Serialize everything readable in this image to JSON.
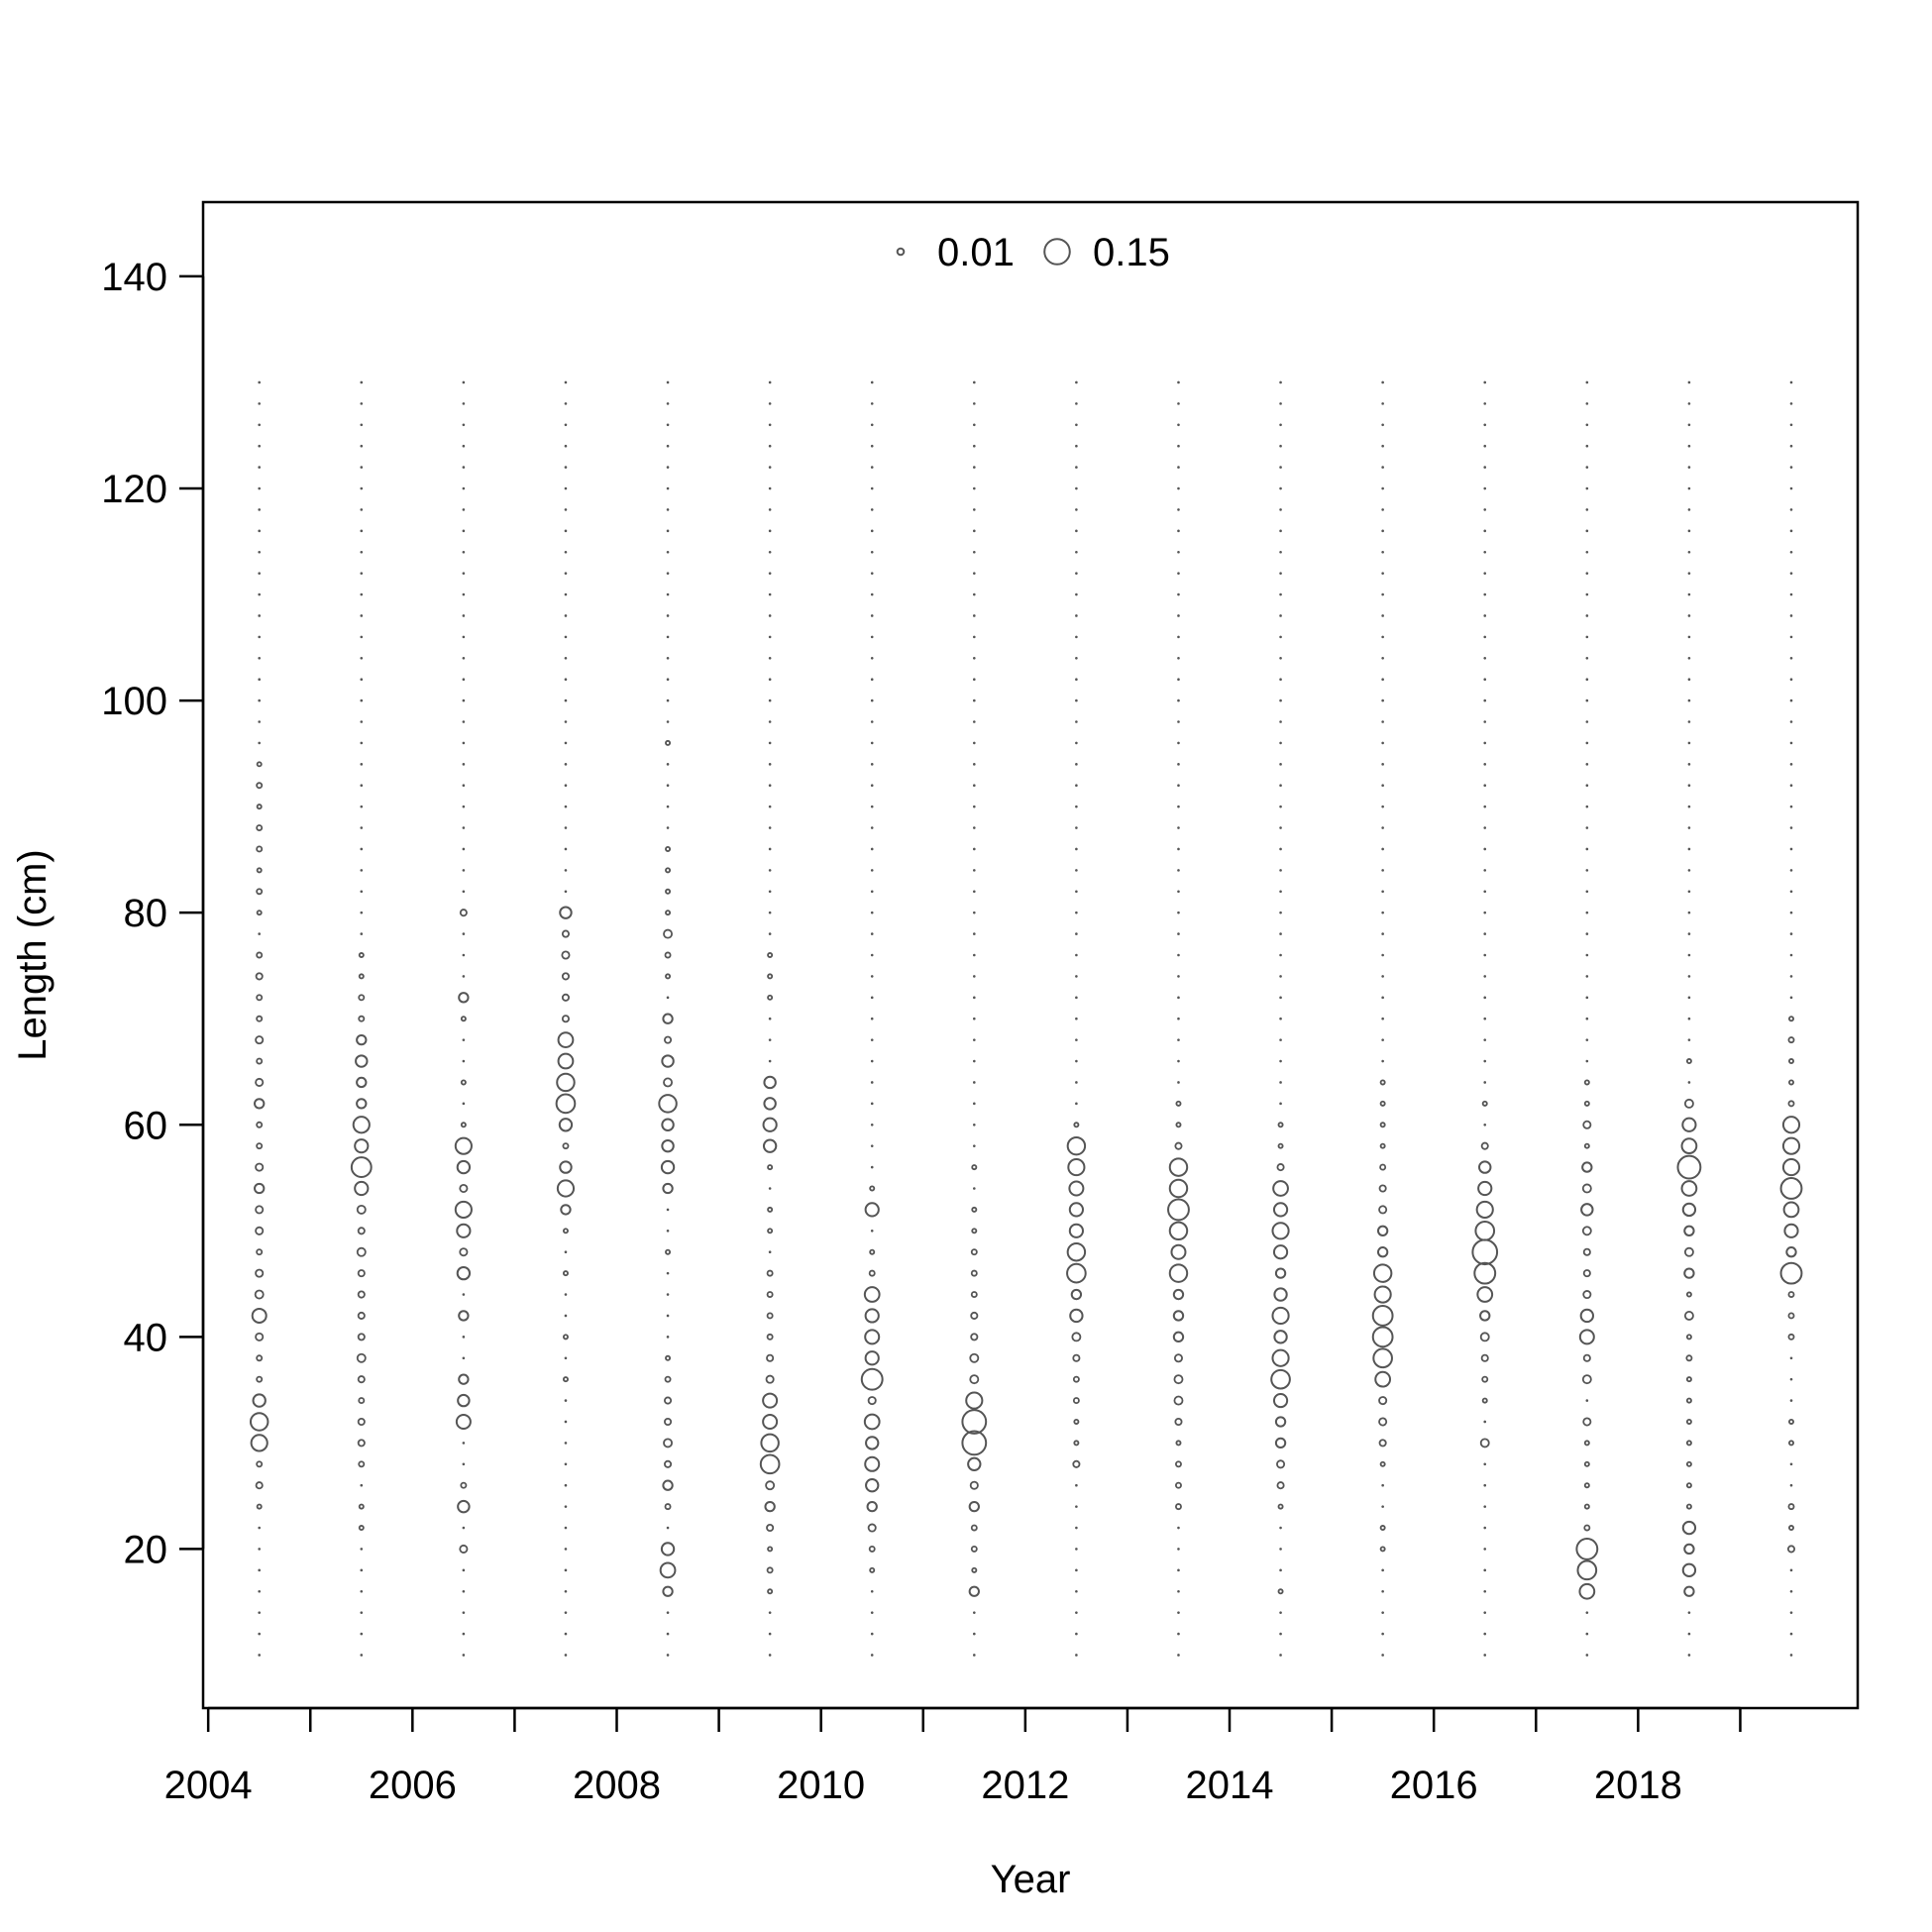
{
  "chart_data": {
    "type": "scatter",
    "subtype": "bubble",
    "title": "",
    "xlabel": "Year",
    "ylabel": "Length (cm)",
    "xlim": [
      2003.95,
      2020.15
    ],
    "ylim": [
      5,
      147
    ],
    "xticks": [
      2004,
      2005,
      2006,
      2007,
      2008,
      2009,
      2010,
      2011,
      2012,
      2013,
      2014,
      2015,
      2016,
      2017,
      2018,
      2019
    ],
    "xtick_labels": [
      "2004",
      "",
      "2006",
      "",
      "2008",
      "",
      "2010",
      "",
      "2012",
      "",
      "2014",
      "",
      "2016",
      "",
      "2018",
      ""
    ],
    "yticks": [
      20,
      40,
      60,
      80,
      100,
      120,
      140
    ],
    "ytick_labels": [
      "20",
      "40",
      "60",
      "80",
      "100",
      "120",
      "140"
    ],
    "grid": false,
    "legend": {
      "position": "top-center",
      "entries": [
        {
          "label": "0.01",
          "value": 0.01
        },
        {
          "label": "0.15",
          "value": 0.15
        }
      ]
    },
    "marker_color": "#555555",
    "bin_min": 10,
    "bin_max": 130,
    "bin_width": 2,
    "years": [
      2004.5,
      2005.5,
      2006.5,
      2007.5,
      2008.5,
      2009.5,
      2010.5,
      2011.5,
      2012.5,
      2013.5,
      2014.5,
      2015.5,
      2016.5,
      2017.5,
      2018.5,
      2019.5
    ],
    "proportions": [
      {
        "year": 2004.5,
        "values": {
          "24": 0.004,
          "26": 0.009,
          "28": 0.006,
          "30": 0.06,
          "32": 0.07,
          "34": 0.035,
          "36": 0.006,
          "38": 0.006,
          "40": 0.012,
          "42": 0.045,
          "44": 0.015,
          "46": 0.012,
          "48": 0.006,
          "50": 0.012,
          "52": 0.012,
          "54": 0.02,
          "56": 0.012,
          "58": 0.006,
          "60": 0.006,
          "62": 0.02,
          "64": 0.012,
          "66": 0.006,
          "68": 0.012,
          "70": 0.006,
          "72": 0.006,
          "74": 0.009,
          "76": 0.006,
          "80": 0.004,
          "82": 0.006,
          "84": 0.004,
          "86": 0.006,
          "88": 0.006,
          "90": 0.004,
          "92": 0.006,
          "94": 0.004
        }
      },
      {
        "year": 2005.5,
        "values": {
          "22": 0.004,
          "24": 0.004,
          "28": 0.006,
          "30": 0.009,
          "32": 0.009,
          "34": 0.006,
          "36": 0.009,
          "38": 0.015,
          "40": 0.009,
          "42": 0.009,
          "44": 0.009,
          "46": 0.009,
          "48": 0.015,
          "50": 0.009,
          "52": 0.015,
          "54": 0.04,
          "56": 0.09,
          "58": 0.04,
          "60": 0.06,
          "62": 0.02,
          "64": 0.02,
          "66": 0.03,
          "68": 0.02,
          "70": 0.006,
          "72": 0.006,
          "74": 0.004,
          "76": 0.004
        }
      },
      {
        "year": 2006.5,
        "values": {
          "20": 0.012,
          "24": 0.03,
          "26": 0.006,
          "32": 0.045,
          "34": 0.03,
          "36": 0.02,
          "42": 0.02,
          "46": 0.035,
          "48": 0.012,
          "50": 0.04,
          "52": 0.06,
          "54": 0.012,
          "56": 0.035,
          "58": 0.06,
          "60": 0.004,
          "64": 0.004,
          "70": 0.004,
          "72": 0.02,
          "80": 0.009
        }
      },
      {
        "year": 2007.5,
        "values": {
          "36": 0.004,
          "40": 0.004,
          "46": 0.004,
          "50": 0.004,
          "52": 0.02,
          "54": 0.06,
          "56": 0.03,
          "58": 0.006,
          "60": 0.035,
          "62": 0.08,
          "64": 0.07,
          "66": 0.05,
          "68": 0.05,
          "70": 0.009,
          "72": 0.009,
          "74": 0.009,
          "76": 0.012,
          "78": 0.009,
          "80": 0.03
        }
      },
      {
        "year": 2008.5,
        "values": {
          "16": 0.02,
          "18": 0.05,
          "20": 0.035,
          "24": 0.006,
          "26": 0.02,
          "28": 0.009,
          "30": 0.015,
          "32": 0.009,
          "34": 0.009,
          "36": 0.006,
          "38": 0.004,
          "48": 0.004,
          "54": 0.02,
          "56": 0.035,
          "58": 0.03,
          "60": 0.03,
          "62": 0.07,
          "64": 0.015,
          "66": 0.03,
          "68": 0.009,
          "70": 0.02,
          "74": 0.004,
          "76": 0.006,
          "78": 0.015,
          "80": 0.004,
          "82": 0.004,
          "84": 0.004,
          "86": 0.004,
          "96": 0.004
        }
      },
      {
        "year": 2009.5,
        "values": {
          "16": 0.004,
          "18": 0.006,
          "20": 0.004,
          "22": 0.009,
          "24": 0.02,
          "26": 0.015,
          "28": 0.08,
          "30": 0.07,
          "32": 0.045,
          "34": 0.045,
          "36": 0.012,
          "38": 0.009,
          "40": 0.006,
          "42": 0.006,
          "44": 0.006,
          "46": 0.006,
          "50": 0.004,
          "52": 0.004,
          "56": 0.004,
          "58": 0.035,
          "60": 0.04,
          "62": 0.03,
          "64": 0.03,
          "72": 0.004,
          "74": 0.004,
          "76": 0.004
        }
      },
      {
        "year": 2010.5,
        "values": {
          "18": 0.004,
          "20": 0.006,
          "22": 0.012,
          "24": 0.02,
          "26": 0.035,
          "28": 0.045,
          "30": 0.035,
          "32": 0.05,
          "34": 0.012,
          "36": 0.1,
          "38": 0.04,
          "40": 0.045,
          "42": 0.04,
          "44": 0.05,
          "46": 0.006,
          "48": 0.004,
          "52": 0.04,
          "54": 0.004
        }
      },
      {
        "year": 2011.5,
        "values": {
          "16": 0.02,
          "18": 0.004,
          "20": 0.006,
          "22": 0.006,
          "24": 0.02,
          "26": 0.012,
          "28": 0.035,
          "30": 0.13,
          "32": 0.13,
          "34": 0.06,
          "36": 0.015,
          "38": 0.015,
          "40": 0.009,
          "42": 0.009,
          "44": 0.006,
          "46": 0.006,
          "48": 0.006,
          "50": 0.004,
          "52": 0.004,
          "56": 0.004
        }
      },
      {
        "year": 2012.5,
        "values": {
          "28": 0.009,
          "30": 0.004,
          "32": 0.004,
          "34": 0.006,
          "36": 0.006,
          "38": 0.009,
          "40": 0.015,
          "42": 0.035,
          "44": 0.02,
          "46": 0.08,
          "48": 0.07,
          "50": 0.04,
          "52": 0.04,
          "54": 0.045,
          "56": 0.06,
          "58": 0.07,
          "60": 0.004
        }
      },
      {
        "year": 2013.5,
        "values": {
          "24": 0.006,
          "26": 0.006,
          "28": 0.006,
          "30": 0.004,
          "32": 0.009,
          "34": 0.015,
          "36": 0.015,
          "38": 0.012,
          "40": 0.02,
          "42": 0.02,
          "44": 0.02,
          "46": 0.07,
          "48": 0.045,
          "50": 0.07,
          "52": 0.1,
          "54": 0.07,
          "56": 0.07,
          "58": 0.009,
          "60": 0.004,
          "62": 0.004
        }
      },
      {
        "year": 2014.5,
        "values": {
          "16": 0.004,
          "24": 0.004,
          "26": 0.009,
          "28": 0.012,
          "30": 0.02,
          "32": 0.02,
          "34": 0.04,
          "36": 0.08,
          "38": 0.06,
          "40": 0.035,
          "42": 0.06,
          "44": 0.035,
          "46": 0.02,
          "48": 0.04,
          "50": 0.06,
          "52": 0.04,
          "54": 0.05,
          "56": 0.009,
          "58": 0.004,
          "60": 0.004
        }
      },
      {
        "year": 2015.5,
        "values": {
          "20": 0.004,
          "22": 0.004,
          "28": 0.004,
          "30": 0.009,
          "32": 0.012,
          "34": 0.012,
          "36": 0.05,
          "38": 0.08,
          "40": 0.09,
          "42": 0.09,
          "44": 0.06,
          "46": 0.07,
          "48": 0.02,
          "50": 0.02,
          "52": 0.012,
          "54": 0.009,
          "56": 0.006,
          "58": 0.004,
          "60": 0.004,
          "62": 0.004,
          "64": 0.004
        }
      },
      {
        "year": 2016.5,
        "values": {
          "30": 0.015,
          "34": 0.004,
          "36": 0.006,
          "38": 0.009,
          "40": 0.015,
          "42": 0.02,
          "44": 0.05,
          "46": 0.1,
          "48": 0.14,
          "50": 0.08,
          "52": 0.06,
          "54": 0.04,
          "56": 0.03,
          "58": 0.009,
          "62": 0.004
        }
      },
      {
        "year": 2017.5,
        "values": {
          "16": 0.05,
          "18": 0.08,
          "20": 0.1,
          "22": 0.006,
          "24": 0.004,
          "26": 0.004,
          "28": 0.004,
          "30": 0.004,
          "32": 0.012,
          "36": 0.015,
          "38": 0.009,
          "40": 0.045,
          "42": 0.035,
          "44": 0.012,
          "46": 0.009,
          "48": 0.009,
          "50": 0.015,
          "52": 0.03,
          "54": 0.015,
          "56": 0.02,
          "58": 0.004,
          "60": 0.012,
          "62": 0.004,
          "64": 0.004
        }
      },
      {
        "year": 2018.5,
        "values": {
          "16": 0.02,
          "18": 0.035,
          "20": 0.02,
          "22": 0.035,
          "24": 0.004,
          "26": 0.004,
          "28": 0.004,
          "30": 0.004,
          "32": 0.004,
          "34": 0.004,
          "36": 0.004,
          "38": 0.006,
          "40": 0.004,
          "42": 0.015,
          "44": 0.004,
          "46": 0.02,
          "48": 0.015,
          "50": 0.02,
          "52": 0.035,
          "54": 0.05,
          "56": 0.12,
          "58": 0.05,
          "60": 0.04,
          "62": 0.015,
          "66": 0.004
        }
      },
      {
        "year": 2019.5,
        "values": {
          "20": 0.009,
          "22": 0.004,
          "24": 0.006,
          "30": 0.004,
          "32": 0.004,
          "40": 0.006,
          "42": 0.006,
          "44": 0.006,
          "46": 0.1,
          "48": 0.02,
          "50": 0.04,
          "52": 0.05,
          "54": 0.1,
          "56": 0.06,
          "58": 0.06,
          "60": 0.06,
          "62": 0.006,
          "64": 0.004,
          "66": 0.004,
          "68": 0.006,
          "70": 0.004
        }
      }
    ]
  }
}
